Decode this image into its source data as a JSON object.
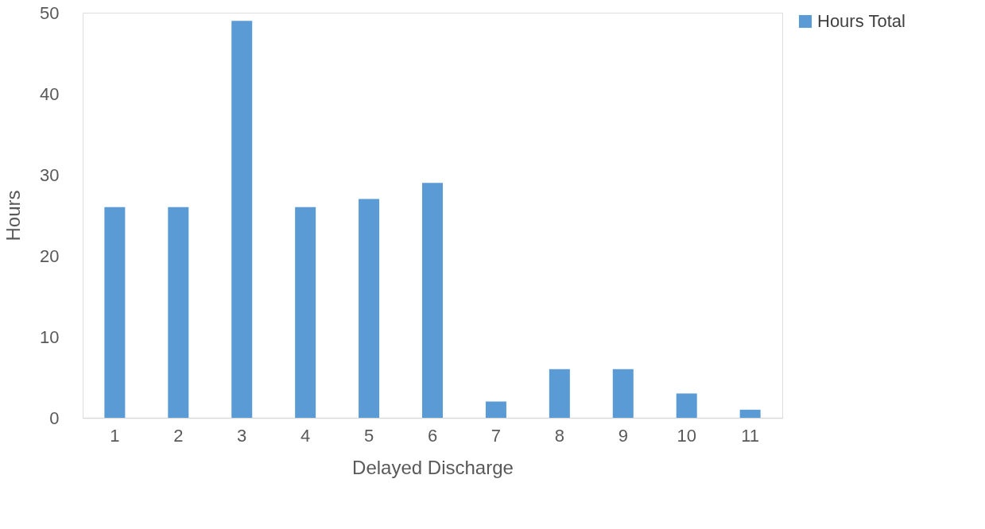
{
  "chart_data": {
    "type": "bar",
    "xlabel": "Delayed Discharge",
    "ylabel": "Hours",
    "categories": [
      "1",
      "2",
      "3",
      "4",
      "5",
      "6",
      "7",
      "8",
      "9",
      "10",
      "11"
    ],
    "series": [
      {
        "name": "Hours Total",
        "color": "#5b9bd5",
        "values": [
          26,
          26,
          49,
          26,
          27,
          29,
          2,
          6,
          6,
          3,
          1
        ]
      }
    ],
    "ylim": [
      0,
      50
    ],
    "yticks": [
      0,
      10,
      20,
      30,
      40,
      50
    ],
    "grid": false,
    "legend": "right"
  }
}
